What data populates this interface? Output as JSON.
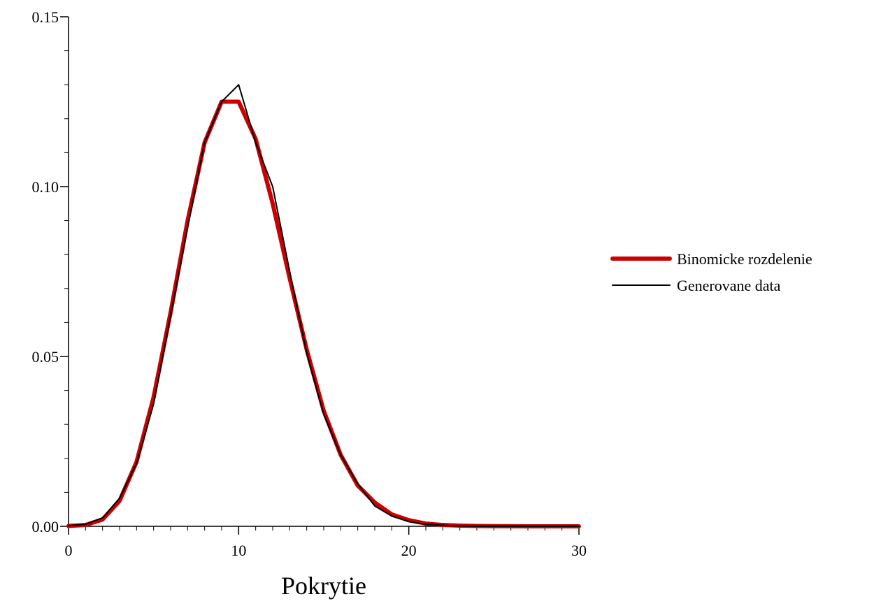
{
  "chart_data": {
    "type": "line",
    "title": "",
    "xlabel": "Pokrytie",
    "ylabel": "",
    "xlim": [
      0,
      30
    ],
    "ylim": [
      0,
      0.15
    ],
    "xticks": [
      0,
      10,
      20,
      30
    ],
    "xtick_labels": [
      "0",
      "10",
      "20",
      "30"
    ],
    "yticks": [
      0,
      0.05,
      0.1,
      0.15
    ],
    "ytick_labels": [
      "0.00",
      "0.05",
      "0.10",
      "0.15"
    ],
    "x_minor_step": 1,
    "y_minor_step": 0.01,
    "grid": false,
    "legend_position": "right",
    "x": [
      0,
      1,
      2,
      3,
      4,
      5,
      6,
      7,
      8,
      9,
      10,
      11,
      12,
      13,
      14,
      15,
      16,
      17,
      18,
      19,
      20,
      21,
      22,
      23,
      24,
      25,
      26,
      27,
      28,
      29,
      30
    ],
    "series": [
      {
        "name": "Binomicke rozdelenie",
        "color": "#cc0000",
        "values": [
          0.0001,
          0.0004,
          0.002,
          0.0075,
          0.019,
          0.038,
          0.063,
          0.09,
          0.113,
          0.125,
          0.125,
          0.114,
          0.095,
          0.073,
          0.052,
          0.034,
          0.021,
          0.012,
          0.007,
          0.0035,
          0.0018,
          0.0008,
          0.0004,
          0.0002,
          0.0001,
          4e-05,
          2e-05,
          1e-05,
          0,
          0,
          0
        ]
      },
      {
        "name": "Generovane data",
        "color": "#000000",
        "values": [
          0.0002,
          0.0006,
          0.0025,
          0.0083,
          0.0185,
          0.036,
          0.062,
          0.088,
          0.113,
          0.125,
          0.13,
          0.113,
          0.1,
          0.075,
          0.051,
          0.033,
          0.021,
          0.0125,
          0.006,
          0.003,
          0.0014,
          0.0006,
          0.0003,
          0.0001,
          0,
          0,
          0,
          0,
          0,
          0,
          0
        ]
      }
    ]
  }
}
